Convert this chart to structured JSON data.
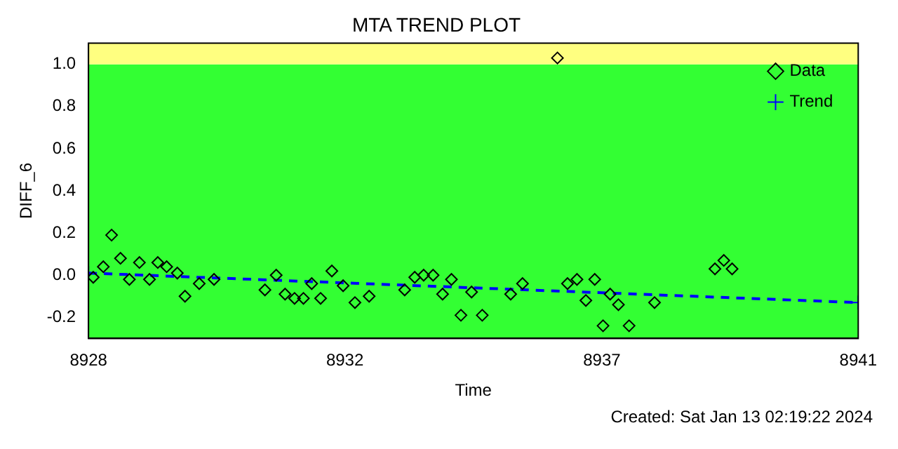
{
  "chart_data": {
    "type": "scatter",
    "title": "MTA TREND PLOT",
    "xlabel": "Time",
    "ylabel": "DIFF_6",
    "annotations": [
      "Created: Sat Jan 13 02:19:22 2024"
    ],
    "xlim": [
      8928,
      8941
    ],
    "xticks": [
      8928,
      {
        "value": 8932.33,
        "label": "8932"
      },
      {
        "value": 8936.67,
        "label": "8937"
      },
      8941
    ],
    "ylim": [
      -0.3,
      1.1
    ],
    "yticks": [
      {
        "value": -0.2,
        "label": "-0.2"
      },
      {
        "value": 0,
        "label": "0.0"
      },
      {
        "value": 0.2,
        "label": "0.2"
      },
      {
        "value": 0.4,
        "label": "0.4"
      },
      {
        "value": 0.6,
        "label": "0.6"
      },
      {
        "value": 0.8,
        "label": "0.8"
      },
      {
        "value": 1.0,
        "label": "1.0"
      }
    ],
    "grid": false,
    "legend": "top right",
    "marker": "diamond",
    "bands": [
      {
        "axis": "y",
        "from": -0.3,
        "to": 1.0,
        "color": "#33ff33"
      },
      {
        "axis": "y",
        "from": 1.0,
        "to": 1.1,
        "color": "#ffff80"
      }
    ],
    "series": [
      {
        "name": "Data",
        "type": "scatter",
        "color": "#000000",
        "x": [
          8928.08,
          8928.25,
          8928.39,
          8928.54,
          8928.69,
          8928.86,
          8929.03,
          8929.17,
          8929.32,
          8929.5,
          8929.63,
          8929.87,
          8930.12,
          8930.98,
          8931.17,
          8931.32,
          8931.48,
          8931.63,
          8931.77,
          8931.92,
          8932.11,
          8932.3,
          8932.5,
          8932.74,
          8933.34,
          8933.51,
          8933.66,
          8933.82,
          8933.98,
          8934.13,
          8934.29,
          8934.47,
          8934.65,
          8935.13,
          8935.33,
          8935.92,
          8936.09,
          8936.25,
          8936.4,
          8936.55,
          8936.69,
          8936.81,
          8936.95,
          8937.13,
          8937.56,
          8938.58,
          8938.73,
          8938.87
        ],
        "values": [
          -0.01,
          0.04,
          0.19,
          0.08,
          -0.02,
          0.06,
          -0.02,
          0.06,
          0.04,
          0.01,
          -0.1,
          -0.04,
          -0.02,
          -0.07,
          0.0,
          -0.09,
          -0.11,
          -0.11,
          -0.04,
          -0.11,
          0.02,
          -0.05,
          -0.13,
          -0.1,
          -0.07,
          -0.01,
          0.0,
          0.0,
          -0.09,
          -0.02,
          -0.19,
          -0.08,
          -0.19,
          -0.09,
          -0.04,
          1.03,
          -0.04,
          -0.02,
          -0.12,
          -0.02,
          -0.24,
          -0.09,
          -0.14,
          -0.24,
          -0.13,
          0.03,
          0.07,
          0.03
        ]
      },
      {
        "name": "Trend",
        "type": "line",
        "color": "#0000ff",
        "marker": "cross",
        "line_style": "dashed",
        "x": [
          8928,
          8941
        ],
        "values": [
          0.01,
          -0.13
        ]
      }
    ]
  }
}
